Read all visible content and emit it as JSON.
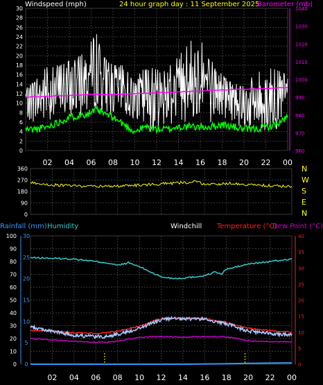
{
  "header": {
    "windspeed_label": "Windspeed (mph)",
    "title": "24 hour graph day : 11 September 2025",
    "barometer_label": "Barometer (mb)"
  },
  "bottom_header": {
    "rainfall_label": "Rainfall (mm)",
    "humidity_label": "Humidity",
    "windchill_label": "Windchill",
    "temperature_label": "Temperature (°C)",
    "dewpoint_label": "Dew Point (°C)"
  },
  "compass": [
    "N",
    "W",
    "S",
    "E",
    "N"
  ],
  "time_ticks": [
    "02",
    "04",
    "06",
    "08",
    "10",
    "12",
    "14",
    "16",
    "18",
    "20",
    "22",
    "00"
  ],
  "colors": {
    "background": "#000000",
    "grid": "#3a3a3a",
    "axis_text": "#ffffff",
    "windspeed": "#ffffff",
    "gust": "#ffffff",
    "avg_wind": "#00ff00",
    "barometer": "#ff00ff",
    "direction": "#ffff00",
    "title": "#ffff00",
    "rainfall": "#3399ff",
    "humidity": "#33cccc",
    "windchill": "#aac8ff",
    "temperature": "#ff2020",
    "dewpoint": "#cc00cc"
  },
  "chart_data": [
    {
      "type": "line",
      "name": "wind",
      "x_range": [
        0,
        24
      ],
      "left_axis_label": "Windspeed (mph)",
      "right_axis_label": "Barometer (mb)",
      "left_ticks": [
        0,
        2,
        4,
        6,
        8,
        10,
        12,
        14,
        16,
        18,
        20,
        22,
        24,
        26,
        28,
        30
      ],
      "right_ticks": [
        960,
        965,
        970,
        975,
        980,
        985,
        990,
        995,
        1000,
        1005,
        1010,
        1015,
        1020,
        1025,
        1030,
        1035,
        1040
      ],
      "ylim": [
        0,
        30
      ],
      "y2lim": [
        960,
        1040
      ],
      "series": [
        {
          "key": "gust",
          "x": [
            0,
            1,
            2,
            3,
            4,
            5,
            5.5,
            6,
            6.5,
            7,
            7.5,
            8,
            9,
            10,
            11,
            12,
            13,
            14,
            15,
            16,
            17,
            18,
            19,
            20,
            21,
            22,
            23,
            24
          ],
          "values": [
            13,
            15,
            18,
            18,
            19,
            20,
            21,
            23,
            25,
            20,
            19,
            18,
            18,
            14,
            19,
            17,
            18,
            20,
            23,
            24,
            19,
            16,
            14,
            14,
            16,
            18,
            17,
            16
          ]
        },
        {
          "key": "wind_avg",
          "x": [
            0,
            1,
            2,
            3,
            4,
            5,
            5.5,
            6,
            6.5,
            7,
            7.5,
            8,
            9,
            10,
            11,
            12,
            13,
            14,
            15,
            16,
            17,
            18,
            19,
            20,
            21,
            22,
            23,
            24
          ],
          "values": [
            11,
            11,
            12,
            13,
            13,
            14,
            15,
            16,
            18,
            15,
            14,
            13,
            13,
            11,
            11,
            11,
            12,
            13,
            15,
            16,
            13,
            12,
            11,
            10,
            10,
            11,
            11,
            12
          ]
        },
        {
          "key": "wind_min",
          "x": [
            0,
            1,
            2,
            3,
            4,
            5,
            5.5,
            6,
            6.5,
            7,
            7.5,
            8,
            9,
            10,
            11,
            12,
            13,
            14,
            15,
            16,
            17,
            18,
            19,
            20,
            21,
            22,
            23,
            24
          ],
          "values": [
            5,
            5,
            6,
            7,
            7,
            7,
            8,
            8,
            9,
            8,
            8,
            7,
            6,
            5,
            5,
            5,
            6,
            7,
            7,
            8,
            6,
            6,
            5,
            4,
            4,
            5,
            5,
            6
          ]
        },
        {
          "key": "average_speed",
          "x": [
            0,
            1,
            2,
            3,
            4,
            5,
            6,
            6.5,
            7,
            8,
            9,
            10,
            11,
            12,
            13,
            14,
            15,
            16,
            17,
            18,
            19,
            20,
            21,
            22,
            23,
            24
          ],
          "values": [
            4.5,
            4.5,
            5,
            6,
            7,
            7.5,
            8,
            8.5,
            8,
            7,
            5.5,
            4,
            5,
            4.5,
            4.5,
            5,
            5,
            5,
            5,
            5.5,
            5,
            4.5,
            4.5,
            5,
            5.5,
            7
          ]
        },
        {
          "key": "barometer",
          "x": [
            0,
            2,
            4,
            6,
            8,
            10,
            12,
            14,
            16,
            18,
            20,
            22,
            24
          ],
          "values": [
            990,
            990.5,
            991,
            991.5,
            991.5,
            992,
            992.5,
            993,
            993.5,
            994,
            994.5,
            995,
            995.5
          ]
        }
      ]
    },
    {
      "type": "line",
      "name": "direction",
      "x_range": [
        0,
        24
      ],
      "left_ticks": [
        0,
        90,
        180,
        270,
        360
      ],
      "ylim": [
        0,
        360
      ],
      "series": [
        {
          "key": "direction",
          "x": [
            0,
            1,
            2,
            3,
            4,
            5,
            6,
            7,
            8,
            9,
            10,
            11,
            12,
            13,
            14,
            15,
            16,
            17,
            18,
            19,
            20,
            21,
            22,
            23,
            24
          ],
          "values": [
            250,
            240,
            232,
            228,
            225,
            222,
            220,
            220,
            222,
            225,
            230,
            235,
            240,
            245,
            250,
            255,
            240,
            235,
            245,
            240,
            232,
            228,
            225,
            222,
            220
          ]
        }
      ]
    },
    {
      "type": "line",
      "name": "temperature",
      "x_range": [
        0,
        24
      ],
      "left_ticks": [
        0,
        10,
        20,
        30,
        40,
        50,
        60,
        70,
        80,
        90,
        100
      ],
      "rain_ticks": [
        0,
        5,
        10,
        15,
        20,
        25,
        30
      ],
      "right_ticks": [
        0,
        5,
        10,
        15,
        20,
        25,
        30,
        35,
        40
      ],
      "ylim": [
        0,
        100
      ],
      "y2lim": [
        0,
        40
      ],
      "series": [
        {
          "key": "humidity",
          "x": [
            0,
            2,
            4,
            5,
            6,
            7,
            7.5,
            8,
            9,
            10,
            11,
            12,
            13,
            14,
            15,
            16,
            17,
            17.5,
            18,
            19,
            20,
            22,
            24
          ],
          "values": [
            83,
            82.5,
            82,
            81,
            80,
            79,
            78,
            77,
            79,
            76,
            72,
            68,
            67,
            67,
            68,
            69,
            72,
            70,
            74,
            76,
            78,
            80,
            82
          ]
        },
        {
          "key": "temperature",
          "x": [
            0,
            1,
            2,
            3,
            4,
            5,
            6,
            7,
            8,
            9,
            10,
            11,
            12,
            13,
            14,
            15,
            16,
            17,
            18,
            19,
            20,
            21,
            22,
            23,
            24
          ],
          "values": [
            10.5,
            10.5,
            10.3,
            10.0,
            9.8,
            9.8,
            9.6,
            9.8,
            10.3,
            11.0,
            11.8,
            13.0,
            14.2,
            14.4,
            14.2,
            14.5,
            14.3,
            13.5,
            13.0,
            12.0,
            11.2,
            10.8,
            10.5,
            10.2,
            10.0
          ]
        },
        {
          "key": "windchill",
          "x": [
            0,
            1,
            2,
            3,
            4,
            5,
            6,
            7,
            8,
            9,
            10,
            11,
            12,
            13,
            14,
            15,
            16,
            17,
            18,
            19,
            20,
            21,
            22,
            23,
            24
          ],
          "values": [
            11.5,
            11.0,
            10.2,
            9.7,
            9.0,
            8.8,
            8.6,
            8.6,
            9.4,
            10.2,
            11.2,
            12.6,
            13.9,
            14.2,
            14.0,
            14.2,
            14.0,
            13.3,
            12.6,
            11.5,
            10.3,
            9.9,
            9.6,
            9.4,
            9.2
          ]
        },
        {
          "key": "dewpoint",
          "x": [
            0,
            2,
            4,
            6,
            7,
            8,
            9,
            10,
            11,
            12,
            14,
            16,
            18,
            19,
            20,
            22,
            24
          ],
          "values": [
            8.0,
            7.6,
            7.1,
            6.8,
            6.8,
            7.2,
            7.8,
            8.3,
            8.6,
            8.6,
            8.4,
            8.6,
            8.5,
            8.0,
            7.3,
            7.0,
            7.0
          ]
        },
        {
          "key": "rainfall",
          "x": [
            0,
            12,
            14,
            18,
            20,
            24
          ],
          "values": [
            0,
            0,
            0,
            0.1,
            0.2,
            0.3
          ]
        }
      ],
      "markers_x": [
        6.8,
        19.7
      ]
    }
  ]
}
